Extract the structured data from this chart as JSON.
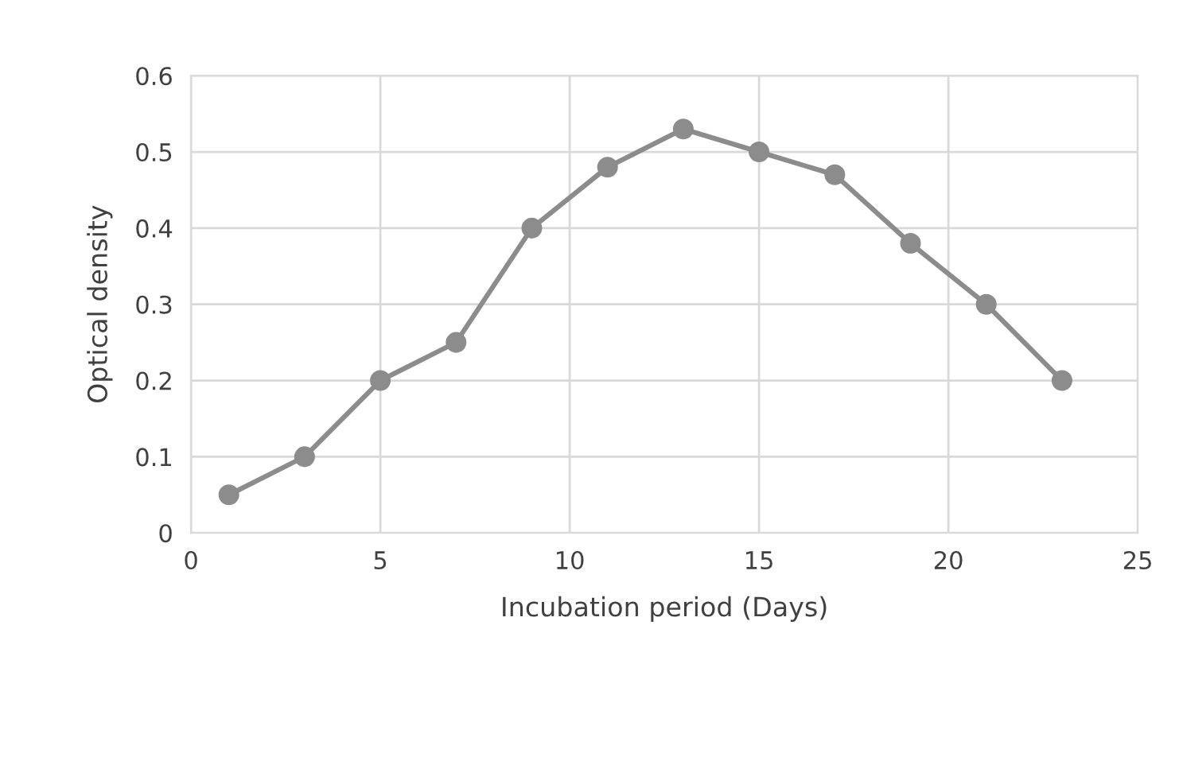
{
  "chart_data": {
    "type": "line",
    "xlabel": "Incubation period (Days)",
    "ylabel": "Optical density",
    "x": [
      1,
      3,
      5,
      7,
      9,
      11,
      13,
      15,
      17,
      19,
      21,
      23
    ],
    "series": [
      {
        "color": "#8c8c8c",
        "values": [
          0.05,
          0.1,
          0.2,
          0.25,
          0.4,
          0.48,
          0.53,
          0.5,
          0.47,
          0.38,
          0.3,
          0.2
        ]
      }
    ],
    "xlim": [
      0,
      25
    ],
    "xticks": [
      0,
      5,
      10,
      15,
      20,
      25
    ],
    "ylim": [
      0,
      0.6
    ],
    "yticks": [
      0,
      0.1,
      0.2,
      0.3,
      0.4,
      0.5,
      0.6
    ],
    "grid": true,
    "marker": "circle",
    "line_style": "solid",
    "legend": false
  }
}
